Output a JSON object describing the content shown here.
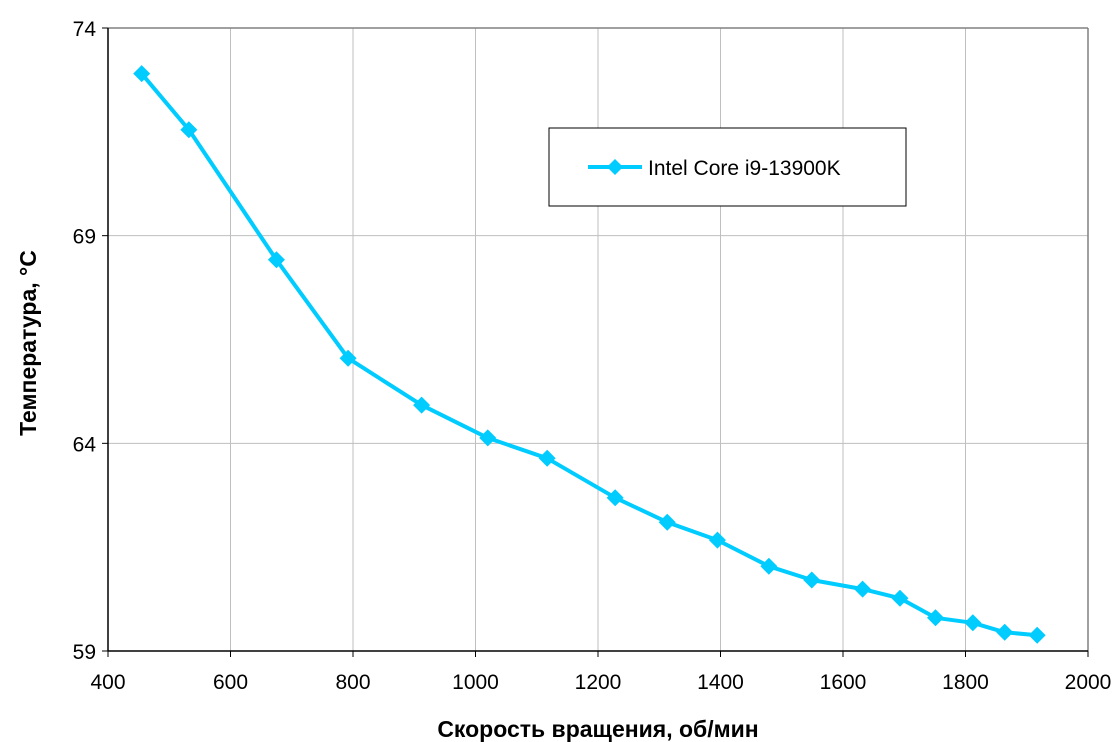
{
  "chart_data": {
    "type": "line",
    "xlabel": "Скорость вращения, об/мин",
    "ylabel": "Температура, °С",
    "xlim": [
      400,
      2000
    ],
    "ylim": [
      59,
      74
    ],
    "x_ticks": [
      400,
      600,
      800,
      1000,
      1200,
      1400,
      1600,
      1800,
      2000
    ],
    "y_ticks": [
      59,
      64,
      69,
      74
    ],
    "grid": true,
    "legend_position": "top-right",
    "series": [
      {
        "name": "Intel Core i9-13900K",
        "color": "#00CCFF",
        "marker": "diamond",
        "x": [
          455,
          532,
          675,
          792,
          912,
          1020,
          1117,
          1228,
          1313,
          1395,
          1479,
          1549,
          1632,
          1693,
          1751,
          1812,
          1864,
          1917
        ],
        "y": [
          72.9,
          71.55,
          68.42,
          66.05,
          64.92,
          64.13,
          63.64,
          62.69,
          62.1,
          61.67,
          61.04,
          60.71,
          60.49,
          60.27,
          59.8,
          59.68,
          59.45,
          59.38
        ]
      }
    ]
  },
  "colors": {
    "grid": "#BFBFBF",
    "axis": "#808080",
    "series": "#00CCFF"
  }
}
